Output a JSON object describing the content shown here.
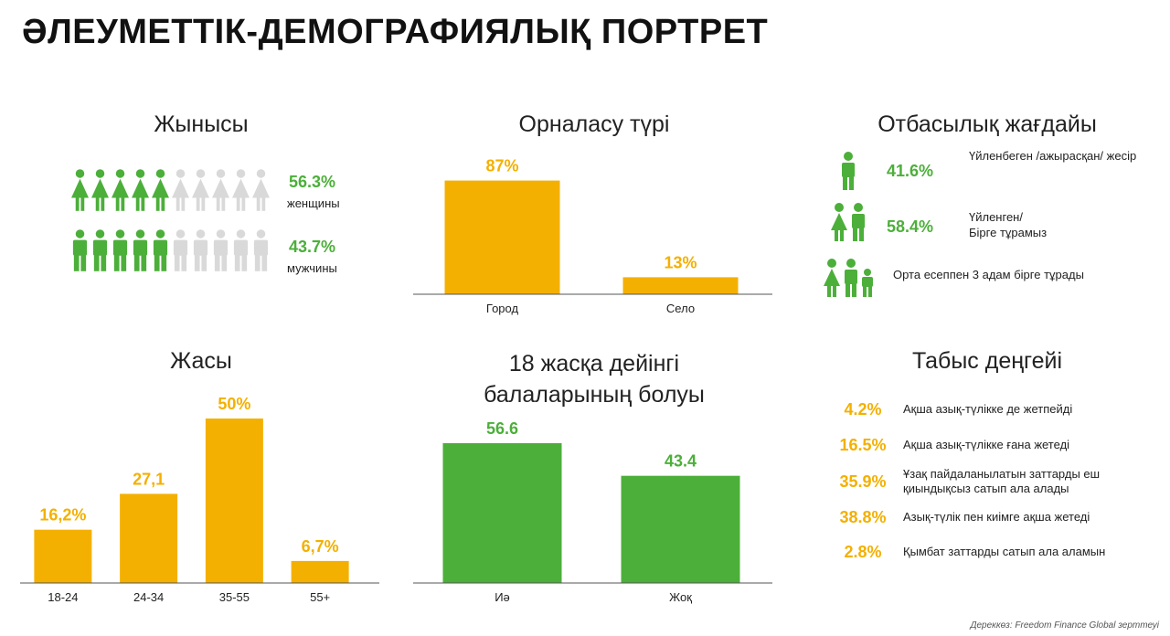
{
  "main_title": "ӘЛЕУМЕТТІК-ДЕМОГРАФИЯЛЫҚ ПОРТРЕТ",
  "colors": {
    "green": "#4caf3a",
    "orange": "#f4b000",
    "gray": "#d9d9d9"
  },
  "gender": {
    "title": "Жынысы",
    "female": {
      "pct": "56.3%",
      "label": "женщины",
      "filled": 5,
      "total": 10,
      "icon": "female-person-icon"
    },
    "male": {
      "pct": "43.7%",
      "label": "мужчины",
      "filled": 5,
      "total": 10,
      "icon": "male-person-icon"
    }
  },
  "family": {
    "title": "Отбасылық жағдайы",
    "single": {
      "pct": "41.6%",
      "label": "Үйленбеген /ажырасқан/ жесір",
      "icon": "single-person-icon"
    },
    "married": {
      "pct": "58.4%",
      "label_line1": "Үйленген/",
      "label_line2": "Бірге тұрамыз",
      "icon": "couple-icon"
    },
    "household": {
      "label": "Орта есеппен 3 адам бірге тұрады",
      "icon": "family-icon"
    }
  },
  "income": {
    "title": "Табыс деңгейі",
    "items": [
      {
        "pct": "4.2%",
        "label": "Ақша азық-түлікке де жетпейді"
      },
      {
        "pct": "16.5%",
        "label": "Ақша азық-түлікке ғана жетеді"
      },
      {
        "pct": "35.9%",
        "label": "Ұзақ пайдаланылатын заттарды еш қиындықсыз сатып ала алады"
      },
      {
        "pct": "38.8%",
        "label": "Азық-түлік пен киімге ақша жетеді"
      },
      {
        "pct": "2.8%",
        "label": "Қымбат заттарды сатып ала аламын"
      }
    ]
  },
  "source": "Дереккөз: Freedom Finance Global зерттеуі",
  "chart_data": [
    {
      "type": "bar",
      "title": "Орналасу түрі",
      "categories": [
        "Город",
        "Село"
      ],
      "values": [
        87,
        13
      ],
      "value_labels": [
        "87%",
        "13%"
      ],
      "ylim": [
        0,
        100
      ],
      "color": "#f4b000"
    },
    {
      "type": "bar",
      "title": "Жасы",
      "categories": [
        "18-24",
        "24-34",
        "35-55",
        "55+"
      ],
      "values": [
        16.2,
        27.1,
        50,
        6.7
      ],
      "value_labels": [
        "16,2%",
        "27,1",
        "50%",
        "6,7%"
      ],
      "ylim": [
        0,
        50
      ],
      "color": "#f4b000"
    },
    {
      "type": "bar",
      "title": "18 жасқа дейінгі балаларының болуы",
      "categories": [
        "Иә",
        "Жоқ"
      ],
      "values": [
        56.6,
        43.4
      ],
      "value_labels": [
        "56.6",
        "43.4"
      ],
      "ylim": [
        0,
        56.6
      ],
      "color": "#4caf3a"
    }
  ]
}
